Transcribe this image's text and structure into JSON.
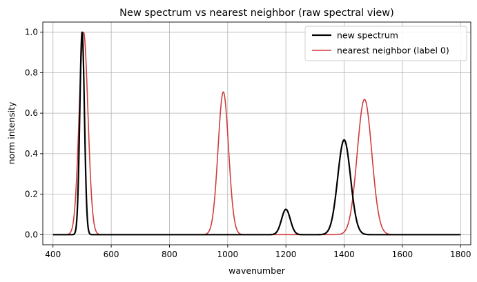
{
  "chart_data": {
    "type": "line",
    "title": "New spectrum vs nearest neighbor (raw spectral view)",
    "xlabel": "wavenumber",
    "ylabel": "norm intensity",
    "xlim": [
      365,
      1835
    ],
    "ylim": [
      -0.05,
      1.05
    ],
    "x_ticks": [
      400,
      600,
      800,
      1000,
      1200,
      1400,
      1600,
      1800
    ],
    "y_ticks": [
      0.0,
      0.2,
      0.4,
      0.6,
      0.8,
      1.0
    ],
    "x_tick_labels": [
      "400",
      "600",
      "800",
      "1000",
      "1200",
      "1400",
      "1600",
      "1800"
    ],
    "y_tick_labels": [
      "0.0",
      "0.2",
      "0.4",
      "0.6",
      "0.8",
      "1.0"
    ],
    "grid": true,
    "legend_position": "top-right",
    "x_range": [
      400,
      1800
    ],
    "series": [
      {
        "name": "new spectrum",
        "color": "#000000",
        "peaks": [
          {
            "center": 500,
            "height": 1.0,
            "sigma": 8
          },
          {
            "center": 1200,
            "height": 0.125,
            "sigma": 15
          },
          {
            "center": 1400,
            "height": 0.468,
            "sigma": 22
          }
        ]
      },
      {
        "name": "nearest neighbor (label 0)",
        "color": "#d03c3c",
        "peaks": [
          {
            "center": 505,
            "height": 1.0,
            "sigma": 15
          },
          {
            "center": 985,
            "height": 0.705,
            "sigma": 18
          },
          {
            "center": 1470,
            "height": 0.668,
            "sigma": 25
          }
        ]
      }
    ]
  }
}
